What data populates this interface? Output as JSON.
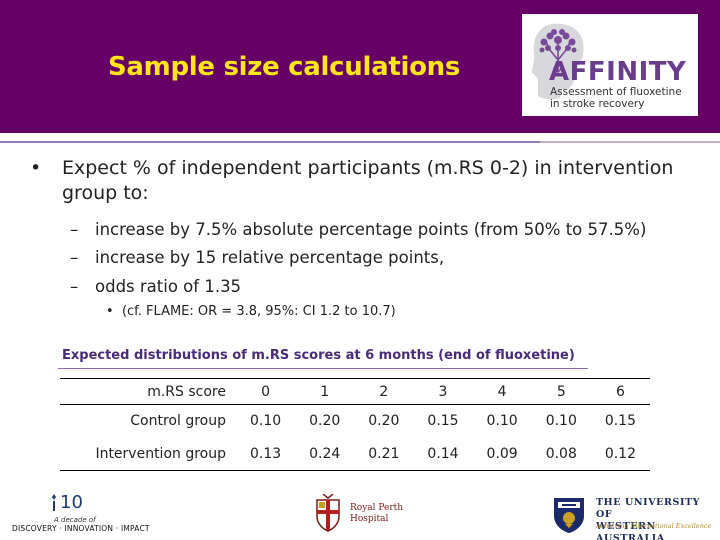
{
  "header": {
    "title": "Sample size calculations",
    "background": "#660066",
    "title_color": "#ffe51a"
  },
  "logo": {
    "name": "AFFINITY",
    "subtitle_line1": "Assessment of fluoxetine",
    "subtitle_line2": "in stroke recovery",
    "icon": "head-tree-icon",
    "color": "#6a3d8a"
  },
  "content": {
    "bullet": "Expect % of independent participants (m.RS 0-2) in intervention group to:",
    "sub_bullets": [
      "increase by 7.5% absolute percentage points (from 50% to 57.5%)",
      "increase by 15 relative percentage points,",
      "odds ratio of 1.35"
    ],
    "dash": "–",
    "note": "(cf. FLAME: OR = 3.8, 95%: CI 1.2 to 10.7)"
  },
  "table": {
    "caption": "Expected distributions of m.RS scores at 6 months (end of fluoxetine)",
    "header_label": "m.RS score",
    "columns": [
      "0",
      "1",
      "2",
      "3",
      "4",
      "5",
      "6"
    ],
    "rows": [
      {
        "label": "Control group",
        "values": [
          "0.10",
          "0.20",
          "0.20",
          "0.15",
          "0.10",
          "0.10",
          "0.15"
        ]
      },
      {
        "label": "Intervention group",
        "values": [
          "0.13",
          "0.24",
          "0.21",
          "0.14",
          "0.09",
          "0.08",
          "0.12"
        ]
      }
    ]
  },
  "footer": {
    "decade_number": "10",
    "decade_sub": "A decade of",
    "decade_tagline": "DISCOVERY · INNOVATION · IMPACT",
    "hospital_line1": "Royal Perth",
    "hospital_line2": "Hospital",
    "uni_line1": "THE UNIVERSITY OF",
    "uni_line2": "WESTERN AUSTRALIA",
    "uni_motto": "Achieving International Excellence"
  }
}
